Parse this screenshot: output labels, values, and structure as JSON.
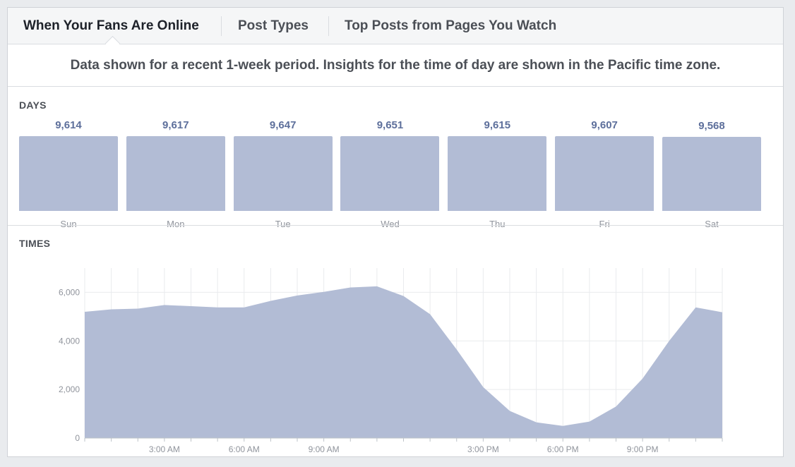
{
  "tabs": [
    {
      "label": "When Your Fans Are Online",
      "active": true
    },
    {
      "label": "Post Types",
      "active": false
    },
    {
      "label": "Top Posts from Pages You Watch",
      "active": false
    }
  ],
  "notice": "Data shown for a recent 1-week period. Insights for the time of day are shown in the Pacific time zone.",
  "days_section": {
    "title": "DAYS"
  },
  "times_section": {
    "title": "TIMES"
  },
  "colors": {
    "bar": "#b2bcd5",
    "value_text": "#5d6f9b",
    "area": "#b2bcd5"
  },
  "chart_data": [
    {
      "type": "bar",
      "categories": [
        "Sun",
        "Mon",
        "Tue",
        "Wed",
        "Thu",
        "Fri",
        "Sat"
      ],
      "values": [
        9614,
        9617,
        9647,
        9651,
        9615,
        9607,
        9568
      ],
      "value_labels": [
        "9,614",
        "9,617",
        "9,647",
        "9,651",
        "9,615",
        "9,607",
        "9,568"
      ],
      "title": "DAYS"
    },
    {
      "type": "area",
      "title": "TIMES",
      "x_hours": [
        0,
        1,
        2,
        3,
        4,
        5,
        6,
        7,
        8,
        9,
        10,
        11,
        12,
        13,
        14,
        15,
        16,
        17,
        18,
        19,
        20,
        21,
        22,
        23,
        24
      ],
      "values": [
        5200,
        5300,
        5330,
        5480,
        5430,
        5380,
        5380,
        5650,
        5870,
        6020,
        6200,
        6250,
        5850,
        5100,
        3650,
        2100,
        1120,
        650,
        500,
        680,
        1300,
        2450,
        4000,
        5380,
        5180
      ],
      "ylim": [
        0,
        7000
      ],
      "yticks": [
        0,
        2000,
        4000,
        6000
      ],
      "ytick_labels": [
        "0",
        "2,000",
        "4,000",
        "6,000"
      ],
      "xticks": [
        3,
        6,
        9,
        15,
        18,
        21
      ],
      "xtick_labels": [
        "3:00 AM",
        "6:00 AM",
        "9:00 AM",
        "3:00 PM",
        "6:00 PM",
        "9:00 PM"
      ],
      "grid": true
    }
  ]
}
